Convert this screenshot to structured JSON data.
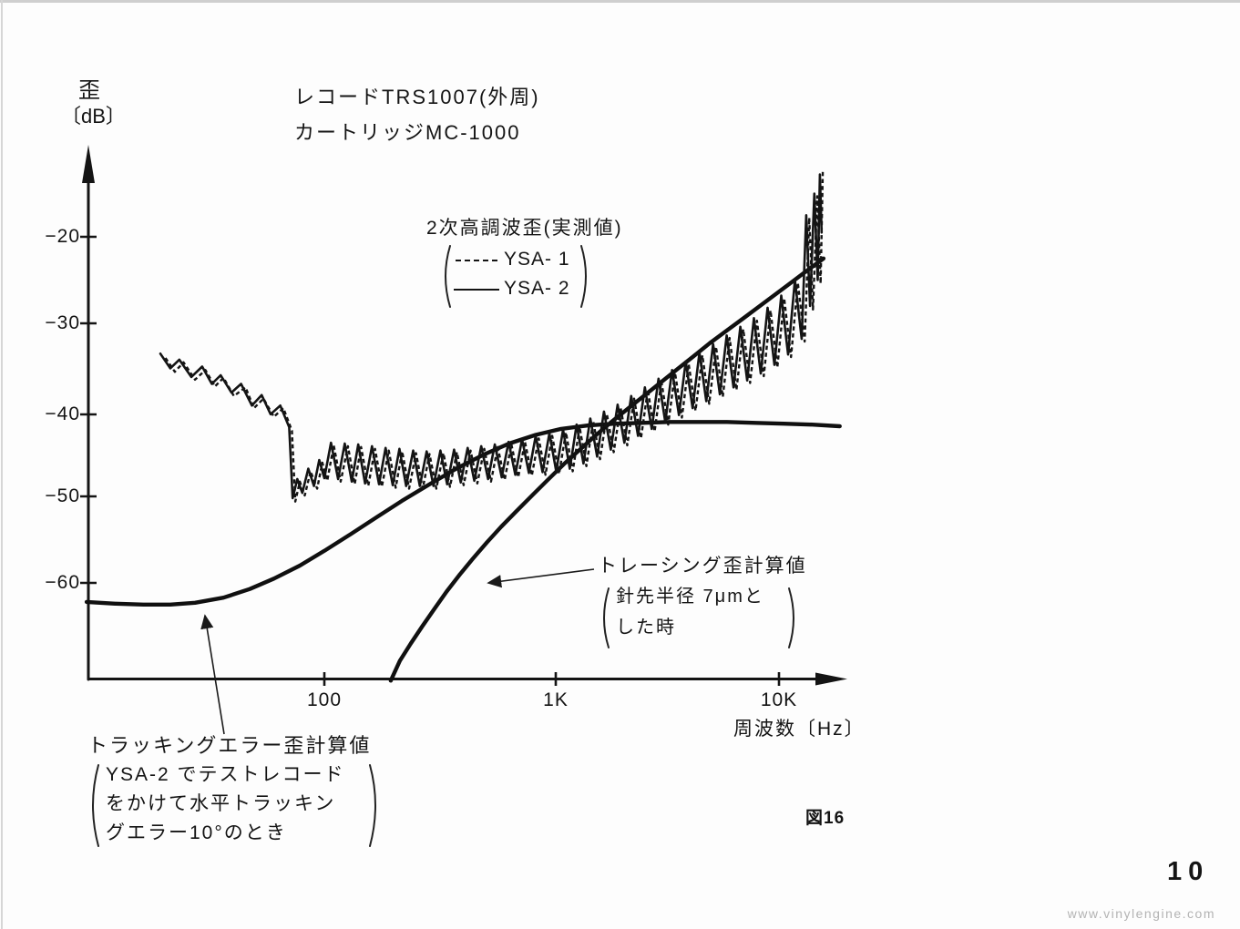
{
  "page": {
    "number": "10",
    "watermark": "www.vinylengine.com"
  },
  "figure": {
    "label": "図16"
  },
  "header": {
    "line1": "レコードTRS1007(外周)",
    "line2": "カートリッジMC-1000"
  },
  "y_axis": {
    "title_line1": "歪",
    "title_line2": "〔dB〕",
    "ticks": [
      "−20",
      "−30",
      "−40",
      "−50",
      "−60"
    ]
  },
  "x_axis": {
    "title": "周波数〔Hz〕",
    "ticks": [
      "100",
      "1K",
      "10K"
    ]
  },
  "legend": {
    "title": "2次高調波歪(実測値)",
    "items": [
      {
        "label": "YSA- 1",
        "style": "dashed"
      },
      {
        "label": "YSA- 2",
        "style": "solid"
      }
    ]
  },
  "annotations": {
    "tracing": {
      "line1": "トレーシング歪計算値",
      "line2": "針先半径 7μmと",
      "line3": "した時"
    },
    "tracking": {
      "line1": "トラッキングエラー歪計算値",
      "line2": "YSA-2 でテストレコード",
      "line3": "をかけて水平トラッキン",
      "line4": "グエラー10°のとき"
    }
  },
  "chart_data": {
    "type": "line",
    "title": "2次高調波歪(実測値) レコードTRS1007(外周) カートリッジMC-1000",
    "xlabel": "周波数〔Hz〕",
    "ylabel": "歪〔dB〕",
    "x_scale": "log",
    "x_range": [
      9,
      18500
    ],
    "y_range": [
      -72,
      -9
    ],
    "x_ticks": [
      100,
      1000,
      10000
    ],
    "y_ticks": [
      -20,
      -30,
      -40,
      -50,
      -60
    ],
    "grid": false,
    "legend_position": "upper-middle",
    "series": [
      {
        "id": "tracking-error-calculated",
        "name": "トラッキングエラー歪計算値 (YSA-2でテストレコードをかけて水平トラッキングエラー10°のとき)",
        "style": "thick",
        "points": [
          [
            9,
            -62.2
          ],
          [
            12,
            -62.4
          ],
          [
            16,
            -62.5
          ],
          [
            21,
            -62.5
          ],
          [
            27,
            -62.3
          ],
          [
            36,
            -61.7
          ],
          [
            47,
            -60.7
          ],
          [
            60,
            -59.5
          ],
          [
            78,
            -58
          ],
          [
            100,
            -56.3
          ],
          [
            130,
            -54.4
          ],
          [
            170,
            -52.4
          ],
          [
            220,
            -50.5
          ],
          [
            290,
            -48.6
          ],
          [
            380,
            -46.8
          ],
          [
            500,
            -45.2
          ],
          [
            650,
            -43.9
          ],
          [
            850,
            -42.9
          ],
          [
            1100,
            -42.2
          ],
          [
            1450,
            -41.8
          ],
          [
            1900,
            -41.6
          ],
          [
            2500,
            -41.5
          ],
          [
            3300,
            -41.4
          ],
          [
            4400,
            -41.4
          ],
          [
            5900,
            -41.4
          ],
          [
            7900,
            -41.5
          ],
          [
            10500,
            -41.6
          ],
          [
            14000,
            -41.7
          ],
          [
            18500,
            -41.9
          ]
        ]
      },
      {
        "id": "tracing-calculated",
        "name": "トレーシング歪計算値 (針先半径7μmとした時)",
        "style": "thick",
        "points": [
          [
            196,
            -71.3
          ],
          [
            215,
            -69
          ],
          [
            240,
            -67
          ],
          [
            270,
            -65
          ],
          [
            305,
            -63
          ],
          [
            345,
            -61
          ],
          [
            395,
            -59
          ],
          [
            450,
            -57.2
          ],
          [
            520,
            -55.3
          ],
          [
            600,
            -53.5
          ],
          [
            700,
            -51.7
          ],
          [
            820,
            -49.9
          ],
          [
            960,
            -48.1
          ],
          [
            1130,
            -46.3
          ],
          [
            1330,
            -44.6
          ],
          [
            1570,
            -42.9
          ],
          [
            1850,
            -41.3
          ],
          [
            2180,
            -39.8
          ],
          [
            2570,
            -38.3
          ],
          [
            3030,
            -36.8
          ],
          [
            3570,
            -35.3
          ],
          [
            4210,
            -33.8
          ],
          [
            4960,
            -32.3
          ],
          [
            5850,
            -30.9
          ],
          [
            6900,
            -29.5
          ],
          [
            8130,
            -28.1
          ],
          [
            9590,
            -26.7
          ],
          [
            11300,
            -25.3
          ],
          [
            13300,
            -23.9
          ],
          [
            15700,
            -22.5
          ]
        ]
      },
      {
        "id": "ysa-2",
        "name": "YSA-2 2次高調波歪(実測値)",
        "style": "solid",
        "points": [
          [
            19,
            -33.5
          ],
          [
            21,
            -35.2
          ],
          [
            23,
            -34.2
          ],
          [
            26,
            -36.2
          ],
          [
            29,
            -35
          ],
          [
            32,
            -37
          ],
          [
            35,
            -36
          ],
          [
            39,
            -38
          ],
          [
            43,
            -37
          ],
          [
            48,
            -39.5
          ],
          [
            53,
            -38.3
          ],
          [
            58,
            -40.5
          ],
          [
            64,
            -39.5
          ],
          [
            70,
            -42
          ],
          [
            72.5,
            -50.2
          ],
          [
            76,
            -48
          ],
          [
            80,
            -49.6
          ],
          [
            85,
            -46.8
          ],
          [
            90,
            -48.8
          ],
          [
            95,
            -45.8
          ],
          [
            100,
            -47.9
          ],
          [
            107,
            -43.8
          ],
          [
            115,
            -48
          ],
          [
            123,
            -43.9
          ],
          [
            132,
            -48.3
          ],
          [
            141,
            -44
          ],
          [
            151,
            -48.5
          ],
          [
            162,
            -44.2
          ],
          [
            174,
            -48.6
          ],
          [
            186,
            -44.4
          ],
          [
            200,
            -48.7
          ],
          [
            214,
            -44.5
          ],
          [
            229,
            -48.8
          ],
          [
            246,
            -44.7
          ],
          [
            263,
            -48.8
          ],
          [
            282,
            -44.8
          ],
          [
            302,
            -48.8
          ],
          [
            324,
            -44.7
          ],
          [
            347,
            -48.6
          ],
          [
            372,
            -44.6
          ],
          [
            398,
            -48.4
          ],
          [
            427,
            -44.4
          ],
          [
            457,
            -48.2
          ],
          [
            490,
            -44.2
          ],
          [
            525,
            -48
          ],
          [
            562,
            -44
          ],
          [
            603,
            -47.8
          ],
          [
            646,
            -43.7
          ],
          [
            692,
            -47.5
          ],
          [
            741,
            -43.4
          ],
          [
            794,
            -47.3
          ],
          [
            851,
            -43
          ],
          [
            912,
            -47.2
          ],
          [
            977,
            -42.7
          ],
          [
            1047,
            -47.1
          ],
          [
            1122,
            -42.3
          ],
          [
            1202,
            -46.8
          ],
          [
            1288,
            -41.7
          ],
          [
            1380,
            -46.2
          ],
          [
            1479,
            -41
          ],
          [
            1585,
            -45.4
          ],
          [
            1698,
            -40.2
          ],
          [
            1820,
            -44.6
          ],
          [
            1950,
            -39.4
          ],
          [
            2089,
            -43.8
          ],
          [
            2239,
            -38.4
          ],
          [
            2399,
            -43
          ],
          [
            2570,
            -37.4
          ],
          [
            2754,
            -42.2
          ],
          [
            2951,
            -36.4
          ],
          [
            3162,
            -41.4
          ],
          [
            3388,
            -35.4
          ],
          [
            3631,
            -40.6
          ],
          [
            3890,
            -34.4
          ],
          [
            4169,
            -39.8
          ],
          [
            4467,
            -33.4
          ],
          [
            4786,
            -39
          ],
          [
            5129,
            -32.4
          ],
          [
            5495,
            -38.2
          ],
          [
            5888,
            -31.4
          ],
          [
            6310,
            -37.4
          ],
          [
            6761,
            -30.4
          ],
          [
            7244,
            -36.6
          ],
          [
            7762,
            -29.4
          ],
          [
            8318,
            -35.8
          ],
          [
            8913,
            -28.2
          ],
          [
            9550,
            -34.8
          ],
          [
            10233,
            -26.8
          ],
          [
            10965,
            -33.6
          ],
          [
            11749,
            -25
          ],
          [
            12589,
            -31.8
          ],
          [
            13183,
            -17.5
          ],
          [
            13700,
            -28
          ],
          [
            14300,
            -15
          ],
          [
            14800,
            -25
          ],
          [
            15136,
            -12.8
          ],
          [
            15400,
            -19.5
          ]
        ]
      },
      {
        "id": "ysa-1",
        "name": "YSA-1 2次高調波歪(実測値)",
        "style": "dashed",
        "points": [
          [
            20,
            -34
          ],
          [
            22,
            -35.6
          ],
          [
            24,
            -34.5
          ],
          [
            27,
            -36.5
          ],
          [
            30,
            -35.4
          ],
          [
            33,
            -37.3
          ],
          [
            36,
            -36.3
          ],
          [
            40,
            -38.4
          ],
          [
            45,
            -37.4
          ],
          [
            49,
            -39.8
          ],
          [
            54,
            -38.7
          ],
          [
            60,
            -40.8
          ],
          [
            66,
            -39.8
          ],
          [
            72,
            -42.4
          ],
          [
            74.5,
            -50.6
          ],
          [
            78,
            -48.3
          ],
          [
            82,
            -49.9
          ],
          [
            87,
            -47.1
          ],
          [
            93,
            -49.1
          ],
          [
            98,
            -46.1
          ],
          [
            103,
            -48.2
          ],
          [
            110,
            -44.1
          ],
          [
            118,
            -48.3
          ],
          [
            127,
            -44.2
          ],
          [
            136,
            -48.6
          ],
          [
            145,
            -44.3
          ],
          [
            156,
            -48.8
          ],
          [
            167,
            -44.5
          ],
          [
            179,
            -48.9
          ],
          [
            192,
            -44.7
          ],
          [
            206,
            -49
          ],
          [
            220,
            -44.8
          ],
          [
            236,
            -49.1
          ],
          [
            253,
            -45
          ],
          [
            271,
            -49.1
          ],
          [
            290,
            -45.1
          ],
          [
            311,
            -49.1
          ],
          [
            334,
            -45
          ],
          [
            357,
            -48.9
          ],
          [
            383,
            -44.9
          ],
          [
            410,
            -48.7
          ],
          [
            440,
            -44.7
          ],
          [
            471,
            -48.5
          ],
          [
            505,
            -44.5
          ],
          [
            541,
            -48.3
          ],
          [
            579,
            -44.3
          ],
          [
            621,
            -48.1
          ],
          [
            665,
            -44
          ],
          [
            713,
            -47.8
          ],
          [
            763,
            -43.7
          ],
          [
            818,
            -47.6
          ],
          [
            877,
            -43.3
          ],
          [
            939,
            -47.5
          ],
          [
            1006,
            -43
          ],
          [
            1078,
            -47.4
          ],
          [
            1156,
            -42.6
          ],
          [
            1238,
            -47.1
          ],
          [
            1327,
            -42
          ],
          [
            1421,
            -46.5
          ],
          [
            1523,
            -41.3
          ],
          [
            1632,
            -45.7
          ],
          [
            1749,
            -40.5
          ],
          [
            1874,
            -44.9
          ],
          [
            2009,
            -39.7
          ],
          [
            2151,
            -44.1
          ],
          [
            2306,
            -38.7
          ],
          [
            2471,
            -43.3
          ],
          [
            2647,
            -37.7
          ],
          [
            2836,
            -42.5
          ],
          [
            3039,
            -36.7
          ],
          [
            3257,
            -41.7
          ],
          [
            3489,
            -35.7
          ],
          [
            3740,
            -40.9
          ],
          [
            4007,
            -34.7
          ],
          [
            4294,
            -40.1
          ],
          [
            4601,
            -33.7
          ],
          [
            4930,
            -39.3
          ],
          [
            5283,
            -32.7
          ],
          [
            5660,
            -38.5
          ],
          [
            6065,
            -31.7
          ],
          [
            6499,
            -37.7
          ],
          [
            6964,
            -30.7
          ],
          [
            7462,
            -36.9
          ],
          [
            7996,
            -29.7
          ],
          [
            8568,
            -36.1
          ],
          [
            9181,
            -28.5
          ],
          [
            9837,
            -35.1
          ],
          [
            10540,
            -27.1
          ],
          [
            11295,
            -33.9
          ],
          [
            12102,
            -25.3
          ],
          [
            12967,
            -32.1
          ],
          [
            13579,
            -17.8
          ],
          [
            14111,
            -28.4
          ],
          [
            14729,
            -15.3
          ],
          [
            15244,
            -25.4
          ],
          [
            15590,
            -12.3
          ]
        ]
      }
    ]
  }
}
